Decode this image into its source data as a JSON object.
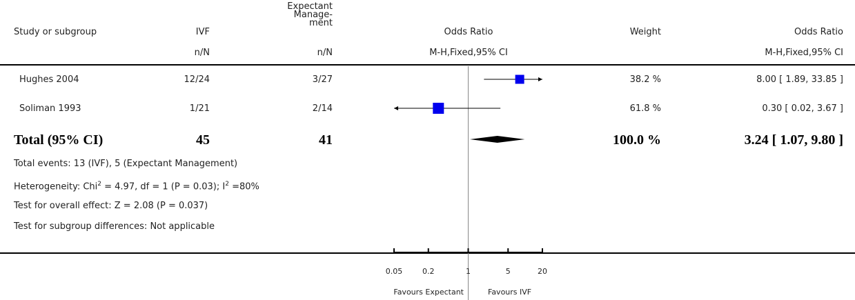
{
  "headers": {
    "study": "Study or subgroup",
    "ivf": "IVF",
    "expectant_lines": [
      "Expectant",
      "Manage-",
      "ment"
    ],
    "odds_ratio_plot": "Odds Ratio",
    "weight": "Weight",
    "odds_ratio_value": "Odds Ratio",
    "ivf_sub": "n/N",
    "expectant_sub": "n/N",
    "plot_sub": "M-H,Fixed,95% CI",
    "value_sub": "M-H,Fixed,95% CI"
  },
  "studies": [
    {
      "name": "Hughes 2004",
      "ivf": "12/24",
      "expectant": "3/27",
      "weight": "38.2 %",
      "ci_text": "8.00 [ 1.89, 33.85 ]"
    },
    {
      "name": "Soliman 1993",
      "ivf": "1/21",
      "expectant": "2/14",
      "weight": "61.8 %",
      "ci_text": "0.30 [ 0.02, 3.67 ]"
    }
  ],
  "total": {
    "label": "Total (95% CI)",
    "ivf": "45",
    "expectant": "41",
    "weight": "100.0 %",
    "ci_text": "3.24 [ 1.07, 9.80 ]"
  },
  "footnotes": {
    "events": "Total events: 13 (IVF), 5 (Expectant Management)",
    "heterogeneity_pre": "Heterogeneity: Chi",
    "heterogeneity_sup1": "2",
    "heterogeneity_mid": " = 4.97, df = 1 (P = 0.03); I",
    "heterogeneity_sup2": "2",
    "heterogeneity_post": " =80%",
    "overall": "Test for overall effect: Z = 2.08 (P = 0.037)",
    "subgroup": "Test for subgroup differences: Not applicable"
  },
  "axis": {
    "favours_left": "Favours Expectant",
    "favours_right": "Favours IVF"
  },
  "chart_data": {
    "type": "forest",
    "scale": "log",
    "xlim": [
      0.05,
      20
    ],
    "ticks": [
      0.05,
      0.2,
      1,
      5,
      20
    ],
    "tick_labels": [
      "0.05",
      "0.2",
      "1",
      "5",
      "20"
    ],
    "null_line": 1,
    "series": [
      {
        "name": "Hughes 2004",
        "or": 8.0,
        "lo": 1.89,
        "hi": 33.85,
        "weight": 38.2
      },
      {
        "name": "Soliman 1993",
        "or": 0.3,
        "lo": 0.02,
        "hi": 3.67,
        "weight": 61.8
      }
    ],
    "pooled": {
      "name": "Total (95% CI)",
      "or": 3.24,
      "lo": 1.07,
      "hi": 9.8
    },
    "colors": {
      "marker": "#0000ee",
      "line": "#000000",
      "diamond": "#000000",
      "null_line": "#888888"
    }
  }
}
